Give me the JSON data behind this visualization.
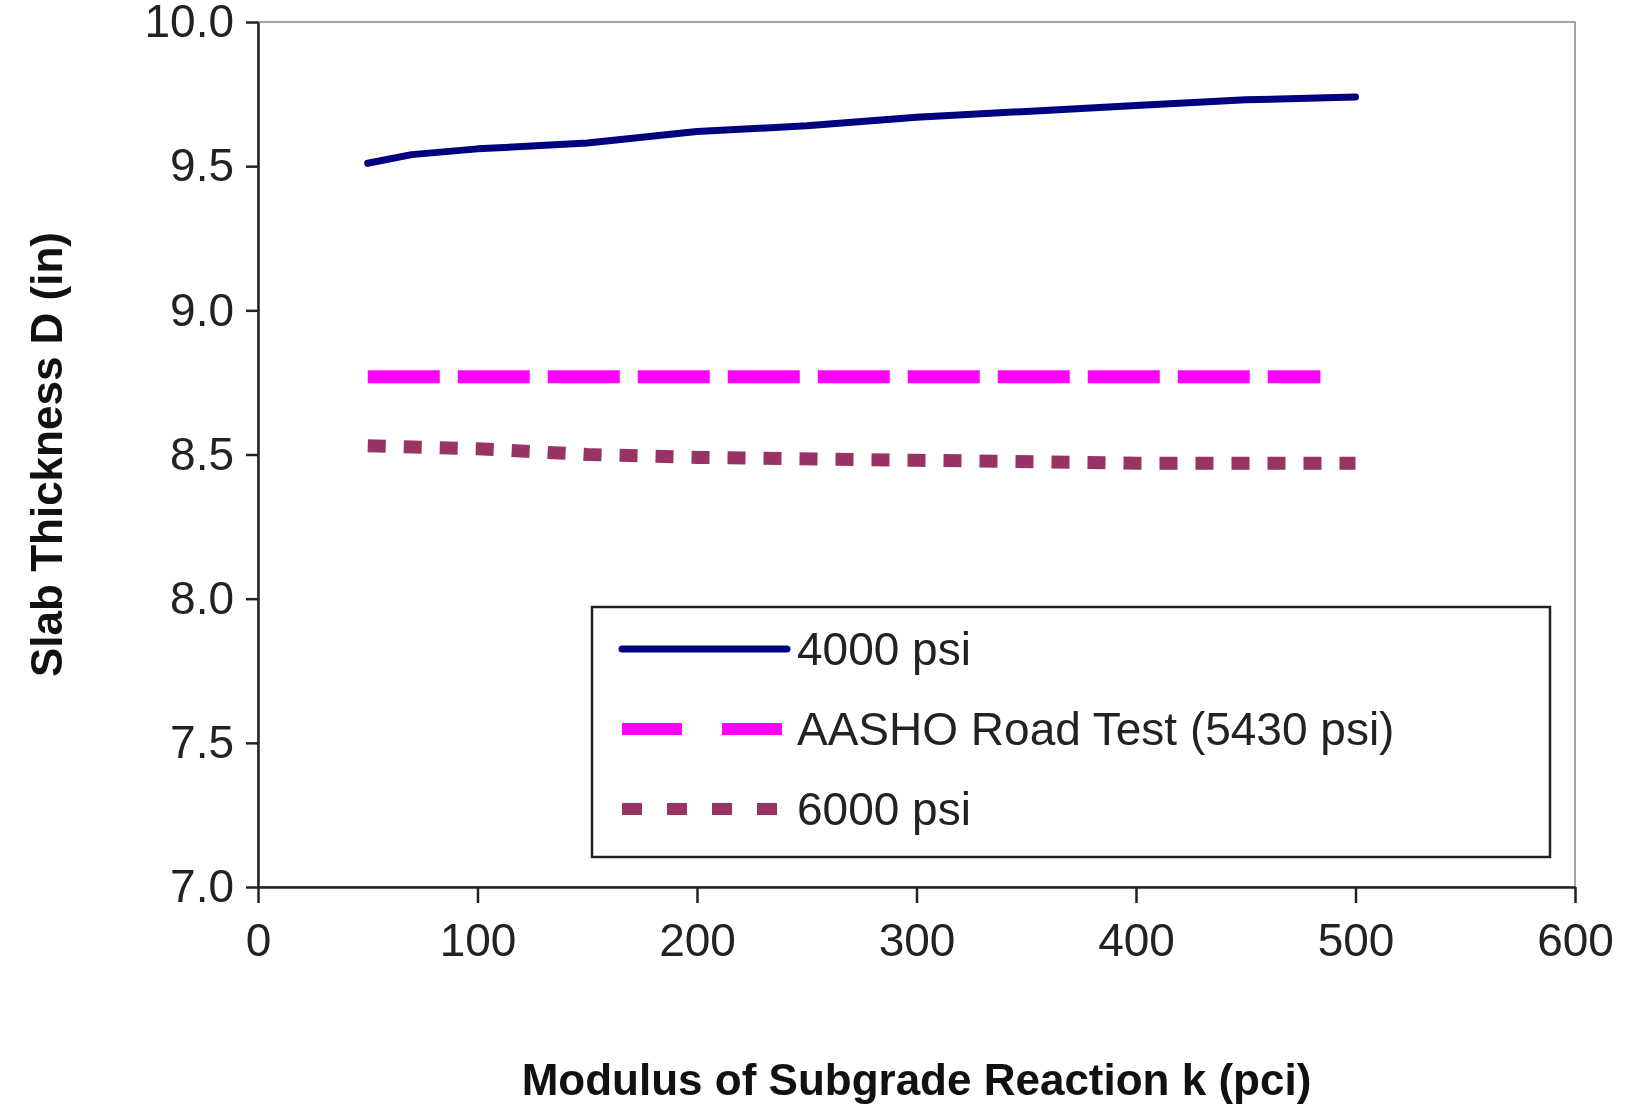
{
  "chart_data": {
    "type": "line",
    "xlabel": "Modulus of Subgrade Reaction k (pci)",
    "ylabel": "Slab Thickness D (in)",
    "xlim": [
      0,
      600
    ],
    "xticks": [
      0,
      100,
      200,
      300,
      400,
      500,
      600
    ],
    "ylim": [
      7,
      10
    ],
    "yticks": [
      {
        "value": 7,
        "label": "7.0"
      },
      {
        "value": 7.5,
        "label": "7.5"
      },
      {
        "value": 8,
        "label": "8.0"
      },
      {
        "value": 8.5,
        "label": "8.5"
      },
      {
        "value": 9,
        "label": "9.0"
      },
      {
        "value": 9.5,
        "label": "9.5"
      },
      {
        "value": 10,
        "label": "10.0"
      }
    ],
    "grid": false,
    "legend": "bottom right",
    "marker": "none",
    "series": [
      {
        "name": "4000 psi",
        "color": "#000080",
        "line_style": "solid",
        "x": [
          50,
          70,
          100,
          150,
          200,
          250,
          300,
          350,
          400,
          450,
          500
        ],
        "values": [
          9.51,
          9.54,
          9.56,
          9.58,
          9.62,
          9.64,
          9.67,
          9.69,
          9.71,
          9.73,
          9.74
        ]
      },
      {
        "name": "AASHO Road Test (5430 psi)",
        "color": "#ff00ff",
        "line_style": "dashed",
        "x": [
          50,
          484
        ],
        "values": [
          8.77,
          8.77
        ]
      },
      {
        "name": "6000 psi",
        "color": "#993366",
        "line_style": "dotted",
        "x": [
          50,
          100,
          150,
          200,
          300,
          400,
          500
        ],
        "values": [
          8.53,
          8.52,
          8.5,
          8.49,
          8.48,
          8.47,
          8.47
        ]
      }
    ]
  }
}
